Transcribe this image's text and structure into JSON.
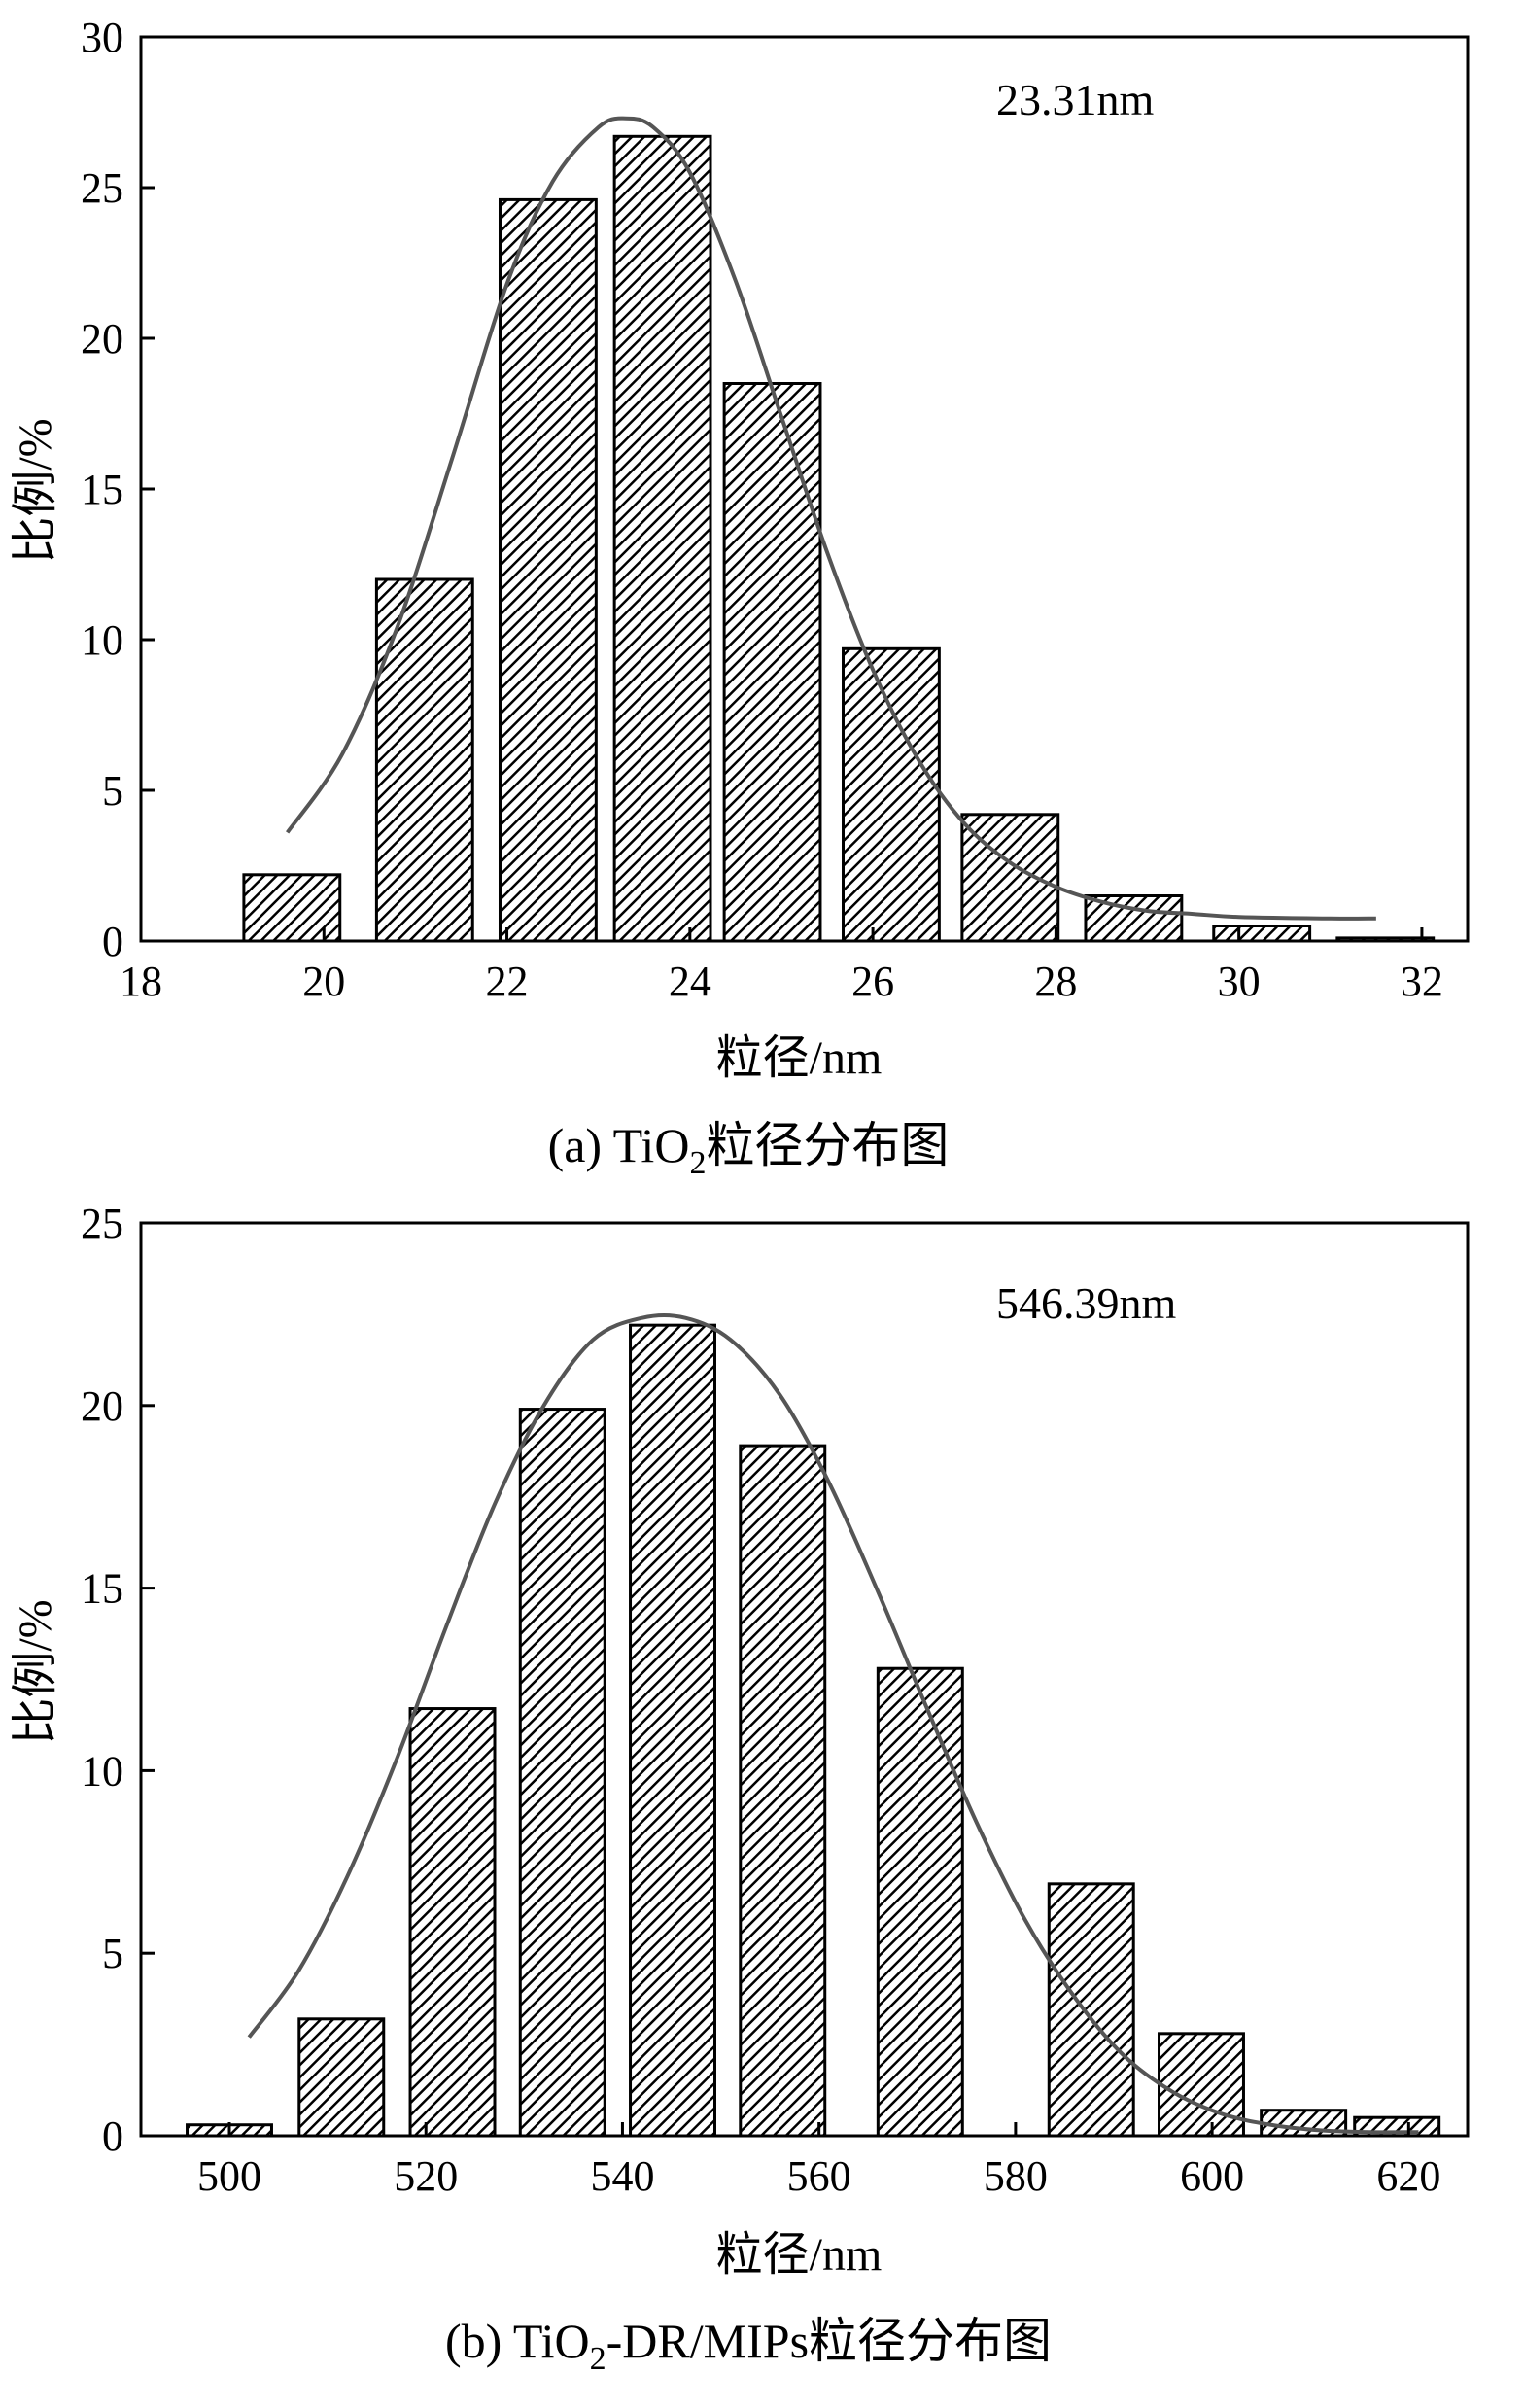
{
  "chart_data": [
    {
      "type": "bar",
      "panel": "a",
      "caption": {
        "pre": "(a) TiO",
        "sub": "2",
        "post": "粒径分布图"
      },
      "xlabel": "粒径/nm",
      "ylabel": "比例/%",
      "annotation": "23.31nm",
      "xlim": [
        18,
        32.5
      ],
      "ylim": [
        0,
        30
      ],
      "xticks": [
        18,
        20,
        22,
        24,
        26,
        28,
        30,
        32
      ],
      "yticks": [
        0,
        5,
        10,
        15,
        20,
        25,
        30
      ],
      "bar_width": 1.05,
      "bars": [
        {
          "x": 19.65,
          "value": 2.2
        },
        {
          "x": 21.1,
          "value": 12.0
        },
        {
          "x": 22.45,
          "value": 24.6
        },
        {
          "x": 23.7,
          "value": 26.7
        },
        {
          "x": 24.9,
          "value": 18.5
        },
        {
          "x": 26.2,
          "value": 9.7
        },
        {
          "x": 27.5,
          "value": 4.2
        },
        {
          "x": 28.85,
          "value": 1.5
        },
        {
          "x": 30.25,
          "value": 0.5
        },
        {
          "x": 31.6,
          "value": 0.1
        }
      ],
      "fit_curve": {
        "x": [
          19.6,
          20.2,
          20.8,
          21.4,
          22.0,
          22.5,
          23.0,
          23.3,
          23.6,
          24.0,
          24.5,
          25.0,
          25.5,
          26.0,
          26.5,
          27.0,
          27.5,
          28.0,
          28.5,
          29.0,
          29.5,
          30.0,
          31.0,
          31.5
        ],
        "y": [
          3.6,
          6.2,
          10.4,
          16.0,
          21.8,
          25.2,
          27.0,
          27.3,
          27.0,
          25.5,
          21.9,
          17.4,
          12.9,
          9.0,
          6.0,
          3.9,
          2.6,
          1.8,
          1.3,
          1.0,
          0.9,
          0.8,
          0.75,
          0.75
        ]
      }
    },
    {
      "type": "bar",
      "panel": "b",
      "caption": {
        "pre": "(b) TiO",
        "sub": "2",
        "post": "-DR/MIPs粒径分布图"
      },
      "xlabel": "粒径/nm",
      "ylabel": "比例/%",
      "annotation": "546.39nm",
      "xlim": [
        491,
        626
      ],
      "ylim": [
        0,
        25
      ],
      "xticks": [
        500,
        520,
        540,
        560,
        580,
        600,
        620
      ],
      "yticks": [
        0,
        5,
        10,
        15,
        20,
        25
      ],
      "bar_width": 8.6,
      "bars": [
        {
          "x": 500.0,
          "value": 0.3
        },
        {
          "x": 511.4,
          "value": 3.2
        },
        {
          "x": 522.7,
          "value": 11.7
        },
        {
          "x": 533.9,
          "value": 19.9
        },
        {
          "x": 545.1,
          "value": 22.2
        },
        {
          "x": 556.3,
          "value": 18.9
        },
        {
          "x": 570.3,
          "value": 12.8
        },
        {
          "x": 587.7,
          "value": 6.9
        },
        {
          "x": 598.9,
          "value": 2.8
        },
        {
          "x": 609.3,
          "value": 0.7
        },
        {
          "x": 618.8,
          "value": 0.5
        }
      ],
      "fit_curve": {
        "x": [
          502,
          507,
          512,
          517,
          522,
          527,
          532,
          537,
          542,
          546.4,
          551,
          556,
          561,
          566,
          571,
          576,
          581,
          586,
          591,
          596,
          601,
          606,
          611,
          616,
          621
        ],
        "y": [
          2.7,
          4.5,
          7.1,
          10.3,
          13.9,
          17.3,
          20.0,
          21.8,
          22.4,
          22.4,
          21.8,
          20.3,
          17.9,
          14.9,
          11.7,
          8.6,
          5.9,
          3.8,
          2.2,
          1.2,
          0.6,
          0.3,
          0.15,
          0.1,
          0.1
        ]
      }
    }
  ]
}
